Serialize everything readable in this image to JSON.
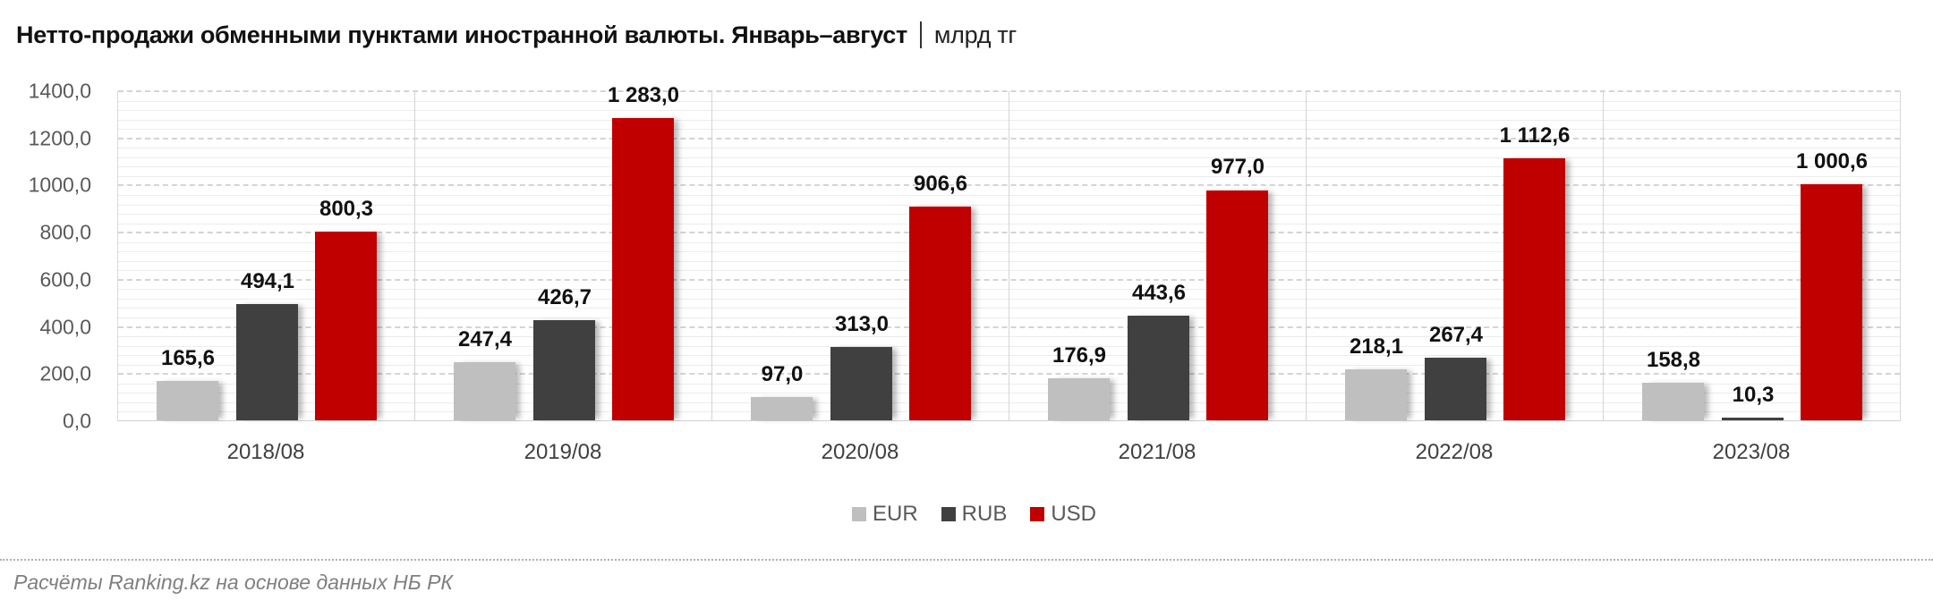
{
  "title": {
    "main": "Нетто-продажи обменными пунктами иностранной валюты. Январь–август",
    "unit": "млрд тг"
  },
  "footer": "Расчёты Ranking.kz на основе данных НБ РК",
  "colors": {
    "EUR": "#BFBFBF",
    "RUB": "#404040",
    "USD": "#C00000"
  },
  "chart_data": {
    "type": "bar",
    "title": "Нетто-продажи обменными пунктами иностранной валюты. Январь–август | млрд тг",
    "xlabel": "",
    "ylabel": "млрд тг",
    "ylim": [
      0,
      1400
    ],
    "yticks": [
      "0,0",
      "200,0",
      "400,0",
      "600,0",
      "800,0",
      "1000,0",
      "1200,0",
      "1400,0"
    ],
    "grid": true,
    "legend_position": "bottom",
    "categories": [
      "2018/08",
      "2019/08",
      "2020/08",
      "2021/08",
      "2022/08",
      "2023/08"
    ],
    "series": [
      {
        "name": "EUR",
        "values": [
          165.6,
          247.4,
          97.0,
          176.9,
          218.1,
          158.8
        ],
        "labels": [
          "165,6",
          "247,4",
          "97,0",
          "176,9",
          "218,1",
          "158,8"
        ]
      },
      {
        "name": "RUB",
        "values": [
          494.1,
          426.7,
          313.0,
          443.6,
          267.4,
          10.3
        ],
        "labels": [
          "494,1",
          "426,7",
          "313,0",
          "443,6",
          "267,4",
          "10,3"
        ]
      },
      {
        "name": "USD",
        "values": [
          800.3,
          1283.0,
          906.6,
          977.0,
          1112.6,
          1000.6
        ],
        "labels": [
          "800,3",
          "1 283,0",
          "906,6",
          "977,0",
          "1 112,6",
          "1 000,6"
        ]
      }
    ]
  }
}
